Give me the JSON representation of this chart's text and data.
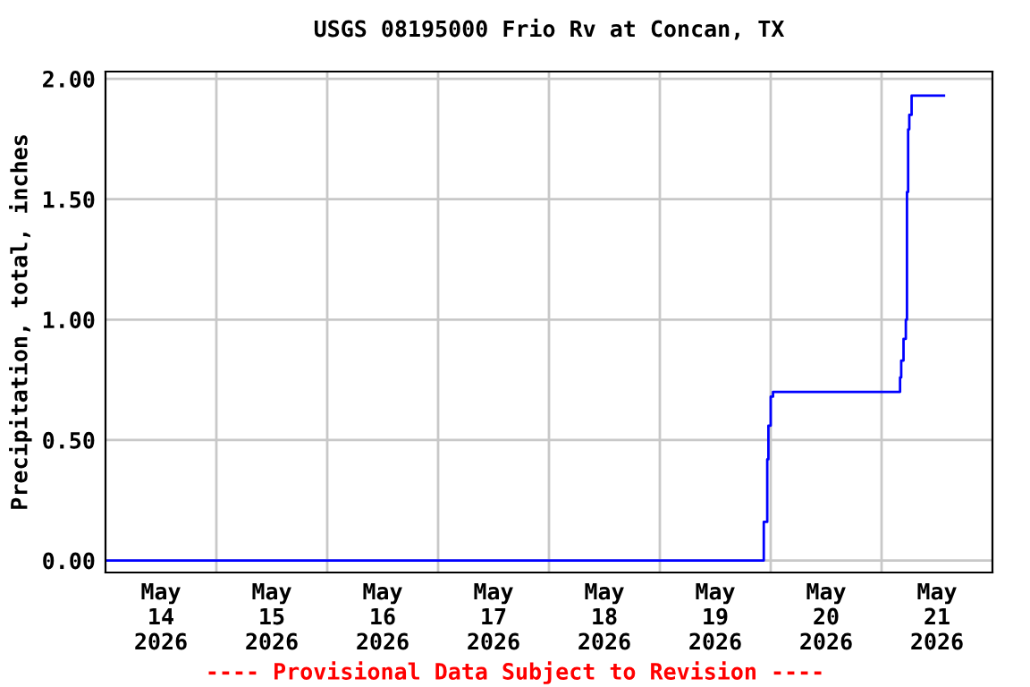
{
  "chart_data": {
    "type": "step",
    "title": "USGS 08195000 Frio Rv at Concan, TX",
    "ylabel": "Precipitation, total, inches",
    "annotations": [
      "---- Provisional Data Subject to Revision ----"
    ],
    "x": [
      "2026-05-14T00:00",
      "2026-05-19T22:30",
      "2026-05-19T23:15",
      "2026-05-19T23:30",
      "2026-05-20T00:00",
      "2026-05-20T00:30",
      "2026-05-21T04:00",
      "2026-05-21T04:15",
      "2026-05-21T04:45",
      "2026-05-21T05:15",
      "2026-05-21T05:30",
      "2026-05-21T05:45",
      "2026-05-21T06:00",
      "2026-05-21T06:30",
      "2026-05-21T13:30"
    ],
    "series": [
      {
        "color": "#0000ff",
        "values": [
          0.0,
          0.16,
          0.42,
          0.56,
          0.68,
          0.7,
          0.76,
          0.83,
          0.92,
          1.0,
          1.53,
          1.79,
          1.85,
          1.93,
          1.93
        ]
      }
    ],
    "xlim": [
      "2026-05-14T00:00",
      "2026-05-22T00:00"
    ],
    "xticks": [
      {
        "value": "2026-05-14T12:00",
        "label": "May\n14\n2026"
      },
      {
        "value": "2026-05-15T12:00",
        "label": "May\n15\n2026"
      },
      {
        "value": "2026-05-16T12:00",
        "label": "May\n16\n2026"
      },
      {
        "value": "2026-05-17T12:00",
        "label": "May\n17\n2026"
      },
      {
        "value": "2026-05-18T12:00",
        "label": "May\n18\n2026"
      },
      {
        "value": "2026-05-19T12:00",
        "label": "May\n19\n2026"
      },
      {
        "value": "2026-05-20T12:00",
        "label": "May\n20\n2026"
      },
      {
        "value": "2026-05-21T12:00",
        "label": "May\n21\n2026"
      },
      {
        "value": "2026-05-15T00:00",
        "label": null
      },
      {
        "value": "2026-05-16T00:00",
        "label": null
      },
      {
        "value": "2026-05-17T00:00",
        "label": null
      },
      {
        "value": "2026-05-18T00:00",
        "label": null
      },
      {
        "value": "2026-05-19T00:00",
        "label": null
      },
      {
        "value": "2026-05-20T00:00",
        "label": null
      },
      {
        "value": "2026-05-21T00:00",
        "label": null
      }
    ],
    "ylim": [
      -0.05,
      2.03
    ],
    "yticks": [
      {
        "value": 0,
        "label": "0.00"
      },
      {
        "value": 0.5,
        "label": "0.50"
      },
      {
        "value": 1,
        "label": "1.00"
      },
      {
        "value": 1.5,
        "label": "1.50"
      },
      {
        "value": 2,
        "label": "2.00"
      }
    ],
    "grid": true,
    "legend": false
  }
}
